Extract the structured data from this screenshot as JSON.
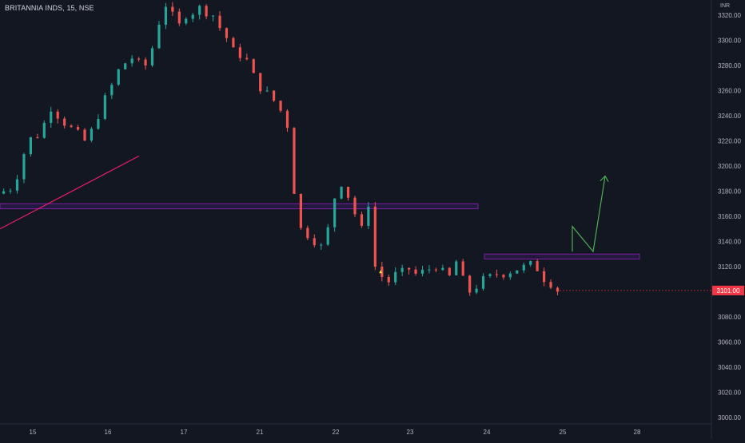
{
  "header": {
    "symbol_title": "BRITANNIA INDS, 15, NSE",
    "currency": "INR"
  },
  "price_badge": {
    "value": "3101.00",
    "color": "#f23645"
  },
  "colors": {
    "background": "#131722",
    "up_candle": "#26a69a",
    "down_candle": "#ef5350",
    "trendline": "#e91e63",
    "zone_border": "#7b1fa2",
    "zone_fill": "#311b55",
    "projection_arrow": "#4caf50",
    "axis_text": "#b2b5be",
    "axis_line": "#2a2e39"
  },
  "chart_data": {
    "type": "candlestick",
    "title": "BRITANNIA INDS, 15, NSE",
    "currency": "INR",
    "timeframe": "15",
    "last_price": 3101.0,
    "x_ticks": [
      "15",
      "16",
      "17",
      "21",
      "22",
      "23",
      "24",
      "25",
      "28"
    ],
    "y_ticks": [
      3000,
      3020,
      3040,
      3060,
      3080,
      3100,
      3120,
      3140,
      3160,
      3180,
      3200,
      3220,
      3240,
      3260,
      3280,
      3300,
      3320
    ],
    "ylim": [
      3000,
      3326
    ],
    "grid": false,
    "series": [
      {
        "name": "Up candles",
        "color": "#26a69a"
      },
      {
        "name": "Down candles",
        "color": "#ef5350"
      }
    ],
    "price_path": [
      [
        0,
        3178
      ],
      [
        2,
        3182
      ],
      [
        3,
        3192
      ],
      [
        4,
        3210
      ],
      [
        5,
        3222
      ],
      [
        6,
        3224
      ],
      [
        7,
        3234
      ],
      [
        8,
        3246
      ],
      [
        9,
        3240
      ],
      [
        10,
        3234
      ],
      [
        11,
        3230
      ],
      [
        12,
        3226
      ],
      [
        13,
        3220
      ],
      [
        14,
        3228
      ],
      [
        15,
        3240
      ],
      [
        16,
        3254
      ],
      [
        17,
        3264
      ],
      [
        18,
        3276
      ],
      [
        19,
        3282
      ],
      [
        20,
        3286
      ],
      [
        21,
        3282
      ],
      [
        22,
        3280
      ],
      [
        23,
        3294
      ],
      [
        24,
        3314
      ],
      [
        25,
        3328
      ],
      [
        26,
        3320
      ],
      [
        27,
        3312
      ],
      [
        28,
        3320
      ],
      [
        29,
        3322
      ],
      [
        30,
        3326
      ],
      [
        31,
        3322
      ],
      [
        32,
        3320
      ],
      [
        33,
        3310
      ],
      [
        34,
        3302
      ],
      [
        35,
        3292
      ],
      [
        36,
        3288
      ],
      [
        37,
        3284
      ],
      [
        38,
        3272
      ],
      [
        39,
        3262
      ],
      [
        40,
        3258
      ],
      [
        41,
        3252
      ],
      [
        42,
        3244
      ],
      [
        43,
        3232
      ],
      [
        44,
        3180
      ],
      [
        45,
        3150
      ],
      [
        46,
        3145
      ],
      [
        47,
        3140
      ],
      [
        48,
        3136
      ],
      [
        49,
        3150
      ],
      [
        50,
        3175
      ],
      [
        51,
        3186
      ],
      [
        52,
        3176
      ],
      [
        53,
        3162
      ],
      [
        54,
        3150
      ],
      [
        55,
        3170
      ],
      [
        56,
        3120
      ],
      [
        57,
        3112
      ],
      [
        58,
        3108
      ],
      [
        59,
        3114
      ],
      [
        60,
        3116
      ],
      [
        61,
        3118
      ],
      [
        62,
        3114
      ],
      [
        63,
        3116
      ],
      [
        64,
        3118
      ],
      [
        65,
        3120
      ],
      [
        66,
        3116
      ],
      [
        67,
        3112
      ],
      [
        68,
        3124
      ],
      [
        69,
        3110
      ],
      [
        70,
        3100
      ],
      [
        71,
        3104
      ],
      [
        72,
        3110
      ],
      [
        73,
        3112
      ],
      [
        74,
        3114
      ],
      [
        75,
        3114
      ],
      [
        76,
        3116
      ],
      [
        77,
        3118
      ],
      [
        78,
        3120
      ],
      [
        79,
        3122
      ],
      [
        80,
        3118
      ],
      [
        81,
        3110
      ],
      [
        82,
        3106
      ],
      [
        83,
        3101
      ]
    ],
    "annotations": [
      {
        "type": "trendline",
        "from": [
          0,
          3150
        ],
        "to": [
          20,
          3208
        ]
      },
      {
        "type": "horizontal-zone",
        "x_range": [
          0,
          69
        ],
        "y_range": [
          3166,
          3170
        ]
      },
      {
        "type": "horizontal-zone",
        "x_range": [
          69,
          91
        ],
        "y_range": [
          3126,
          3130
        ]
      },
      {
        "type": "projection-arrow",
        "points": [
          [
            81,
            3132
          ],
          [
            81,
            3152
          ],
          [
            84,
            3132
          ],
          [
            86,
            3192
          ]
        ]
      },
      {
        "type": "marker",
        "at": [
          56,
          3116
        ]
      }
    ]
  }
}
